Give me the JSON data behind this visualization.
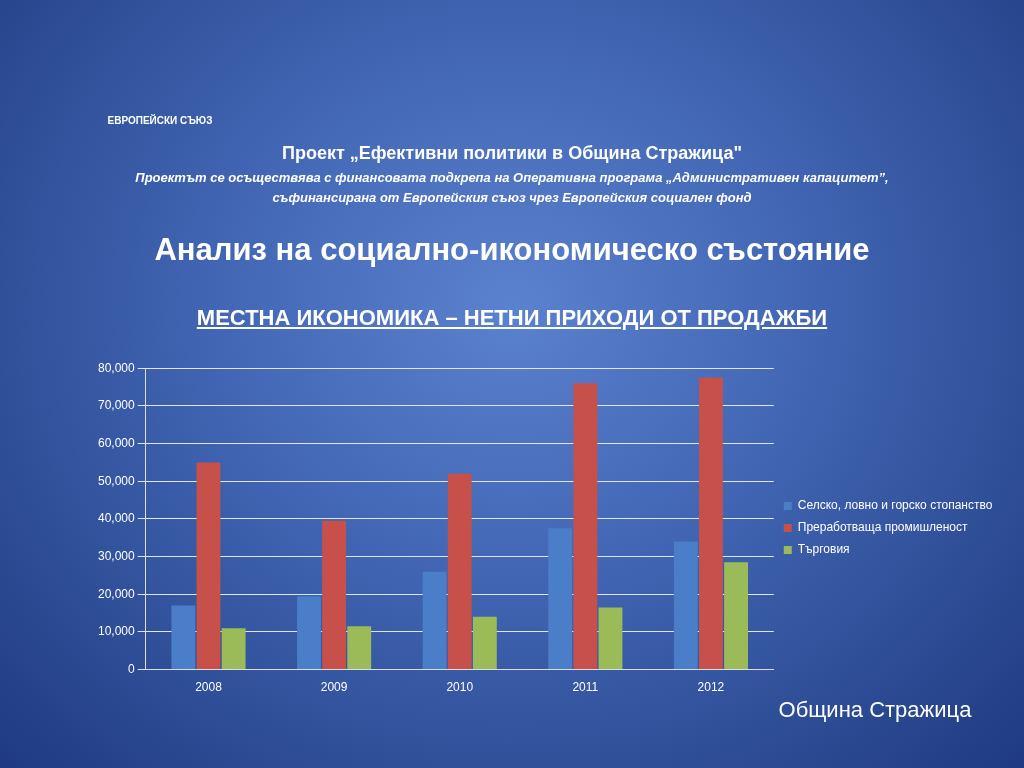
{
  "chart_data": {
    "type": "bar",
    "title": "МЕСТНА ИКОНОМИКА – НЕТНИ ПРИХОДИ ОТ ПРОДАЖБИ",
    "annotations": [
      "ЕВРОПЕЙСКИ СЪЮЗ",
      "Проект „Ефективни политики в Община Стражица\"",
      "Проектът се осъществява с финансовата подкрепа на Оперативна програма „Административен капацитет”,",
      "съфинансирана от Европейския съюз чрез Европейския социален фонд",
      "Анализ на социално-икономическо състояние",
      "Община Стражица"
    ],
    "categories": [
      "2008",
      "2009",
      "2010",
      "2011",
      "2012"
    ],
    "series": [
      {
        "name": "Селско, ловно и горско стопанство",
        "color": "#4a7ec8",
        "values": [
          17000,
          19500,
          26000,
          37500,
          34000
        ]
      },
      {
        "name": "Преработваща промишленост",
        "color": "#c8504b",
        "values": [
          55000,
          39500,
          52000,
          76000,
          77500
        ]
      },
      {
        "name": "Търговия",
        "color": "#9bbb59",
        "values": [
          11000,
          11500,
          14000,
          16500,
          28500
        ]
      }
    ],
    "ylim": [
      0,
      80000
    ],
    "yticks": [
      0,
      {
        "value": 10000,
        "label": "10,000"
      },
      {
        "value": 20000,
        "label": "20,000"
      },
      {
        "value": 30000,
        "label": "30,000"
      },
      {
        "value": 40000,
        "label": "40,000"
      },
      {
        "value": 50000,
        "label": "50,000"
      },
      {
        "value": 60000,
        "label": "60,000"
      },
      {
        "value": 70000,
        "label": "70,000"
      },
      {
        "value": 80000,
        "label": "80,000"
      }
    ],
    "grid": "y",
    "legend": "right"
  }
}
